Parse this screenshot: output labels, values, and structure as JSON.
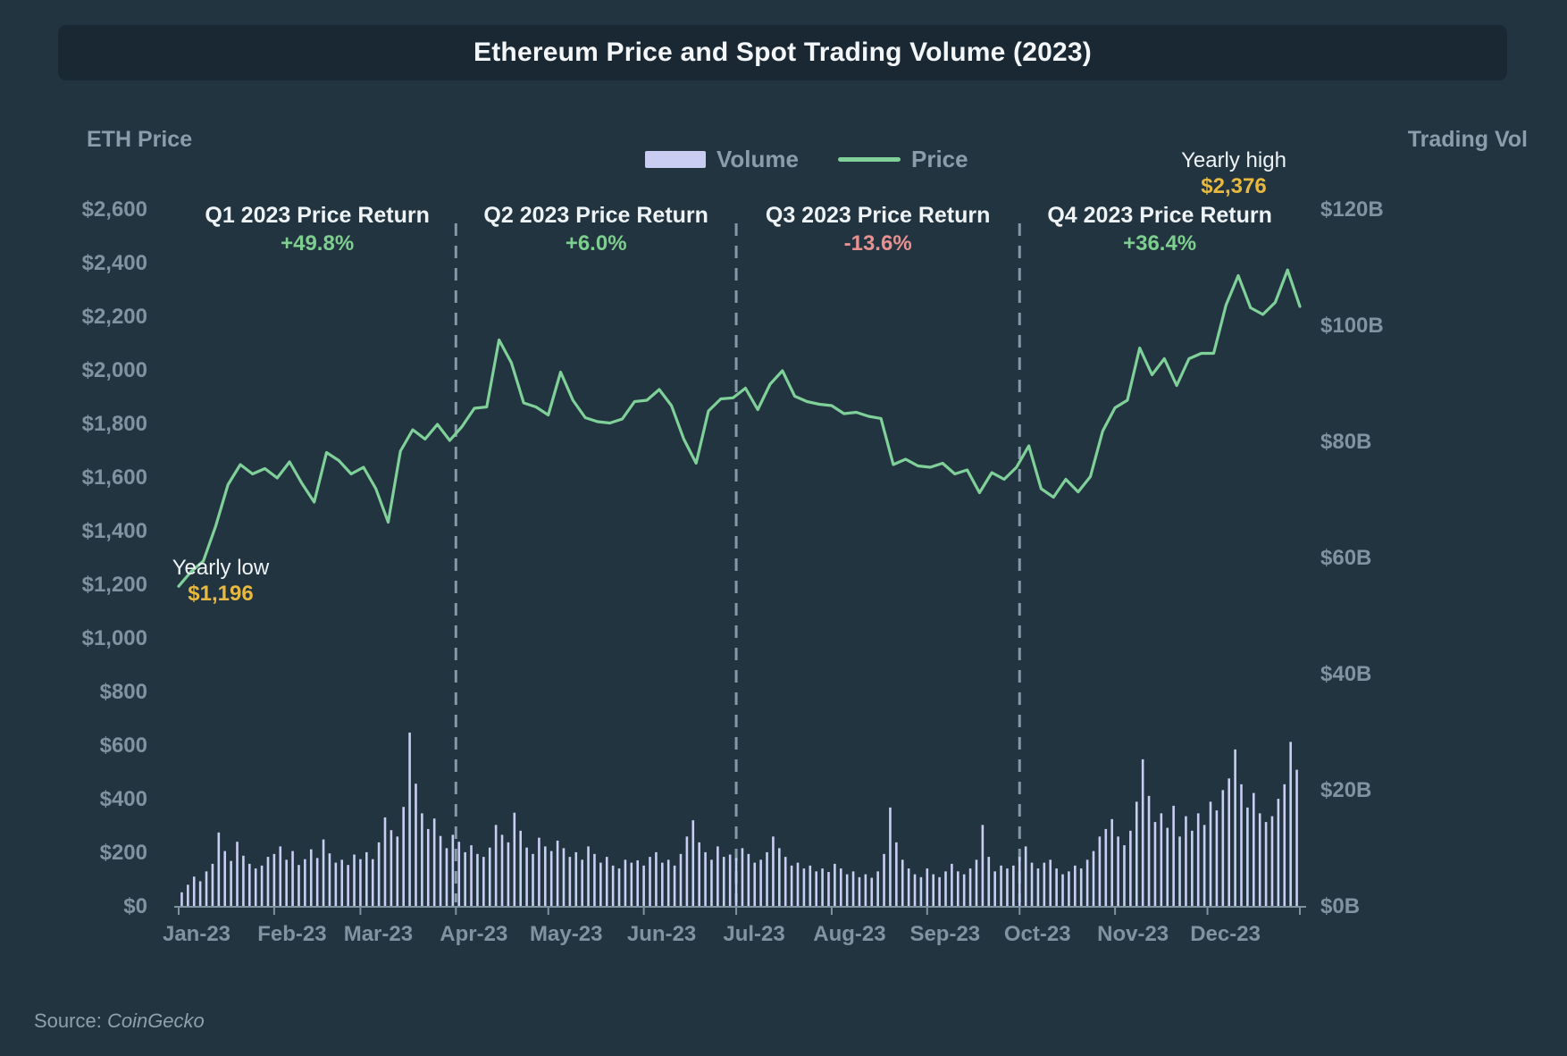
{
  "title": {
    "text": "Ethereum Price and Spot Trading Volume (2023)"
  },
  "axes": {
    "left_title": "ETH Price",
    "right_title": "Trading Vol",
    "left_ticks": [
      "$0",
      "$200",
      "$400",
      "$600",
      "$800",
      "$1,000",
      "$1,200",
      "$1,400",
      "$1,600",
      "$1,800",
      "$2,000",
      "$2,200",
      "$2,400",
      "$2,600"
    ],
    "right_ticks": [
      "$0B",
      "$20B",
      "$40B",
      "$60B",
      "$80B",
      "$100B",
      "$120B"
    ],
    "month_labels": [
      "Jan-23",
      "Feb-23",
      "Mar-23",
      "Apr-23",
      "May-23",
      "Jun-23",
      "Jul-23",
      "Aug-23",
      "Sep-23",
      "Oct-23",
      "Nov-23",
      "Dec-23"
    ]
  },
  "legend": {
    "volume_label": "Volume",
    "price_label": "Price"
  },
  "quarters": [
    {
      "label": "Q1 2023 Price Return",
      "value": "+49.8%",
      "direction": "positive"
    },
    {
      "label": "Q2 2023 Price Return",
      "value": "+6.0%",
      "direction": "positive"
    },
    {
      "label": "Q3 2023 Price Return",
      "value": "-13.6%",
      "direction": "negative"
    },
    {
      "label": "Q4 2023 Price Return",
      "value": "+36.4%",
      "direction": "positive"
    }
  ],
  "annotations": {
    "yearly_low": {
      "label": "Yearly low",
      "value": "$1,196"
    },
    "yearly_high": {
      "label": "Yearly high",
      "value": "$2,376"
    }
  },
  "source": {
    "prefix": "Source:",
    "name": "CoinGecko"
  },
  "colors": {
    "background": "#223440",
    "panel": "#1a2833",
    "title_text": "#f4f7f9",
    "axis_text": "#8093a0",
    "legend_text": "#8a9dab",
    "price_line": "#7fd099",
    "volume_bar": "#c9cdf1",
    "divider": "#9db3c1",
    "positive": "#7ecf8f",
    "negative": "#e79191",
    "highlight": "#e8b93e",
    "annotation_text": "#eef3f6",
    "axis_line": "#7e92a0"
  },
  "chart_data": {
    "type": "line+bar",
    "title": "Ethereum Price and Spot Trading Volume (2023)",
    "x_axis": {
      "start": "2023-01-01",
      "end": "2023-12-31",
      "month_tick_days": [
        0,
        31,
        59,
        90,
        120,
        151,
        181,
        212,
        243,
        273,
        304,
        334
      ]
    },
    "left_axis": {
      "label": "ETH Price (USD)",
      "min": 0,
      "max": 2600,
      "tick_step": 200
    },
    "right_axis": {
      "label": "Trading Vol (USD billions)",
      "min": 0,
      "max": 120,
      "tick_step": 20
    },
    "quarter_boundaries_days": [
      90,
      181,
      273
    ],
    "quarter_returns_pct": [
      49.8,
      6.0,
      -13.6,
      36.4
    ],
    "yearly_low_usd": 1196,
    "yearly_high_usd": 2376,
    "price": {
      "series": "ETH price, USD",
      "axis": "left",
      "start_day": 0,
      "step_days": 4,
      "values": [
        1196,
        1250,
        1290,
        1420,
        1575,
        1650,
        1615,
        1635,
        1600,
        1660,
        1580,
        1510,
        1695,
        1665,
        1615,
        1640,
        1560,
        1435,
        1700,
        1780,
        1745,
        1800,
        1740,
        1792,
        1860,
        1865,
        2115,
        2030,
        1880,
        1865,
        1835,
        1995,
        1890,
        1825,
        1810,
        1805,
        1820,
        1885,
        1890,
        1930,
        1870,
        1745,
        1655,
        1850,
        1895,
        1899,
        1935,
        1855,
        1950,
        2000,
        1905,
        1885,
        1875,
        1870,
        1840,
        1845,
        1830,
        1822,
        1650,
        1670,
        1645,
        1640,
        1655,
        1615,
        1630,
        1545,
        1620,
        1595,
        1640,
        1720,
        1560,
        1528,
        1595,
        1548,
        1605,
        1775,
        1862,
        1890,
        2085,
        1985,
        2045,
        1945,
        2045,
        2065,
        2065,
        2245,
        2355,
        2235,
        2210,
        2255,
        2376,
        2240
      ]
    },
    "volume": {
      "series": "Spot trading volume, USD billions",
      "axis": "right",
      "start_day": 1,
      "step_days": 2,
      "values": [
        2.5,
        3.8,
        5.2,
        4.4,
        6.1,
        7.4,
        12.8,
        9.6,
        7.9,
        11.2,
        8.8,
        7.4,
        6.6,
        7.1,
        8.6,
        9.1,
        10.4,
        8.1,
        9.6,
        7.2,
        8.2,
        9.9,
        8.4,
        11.6,
        9.2,
        7.6,
        8.1,
        7.2,
        9.0,
        8.2,
        9.4,
        8.2,
        11.1,
        15.4,
        13.2,
        12.1,
        17.2,
        30.0,
        21.2,
        16.1,
        13.4,
        15.2,
        12.2,
        10.1,
        12.4,
        11.2,
        9.4,
        10.6,
        9.1,
        8.6,
        10.2,
        14.1,
        12.4,
        11.1,
        16.2,
        13.1,
        10.2,
        9.1,
        11.9,
        10.4,
        9.6,
        11.4,
        10.1,
        8.6,
        9.4,
        8.1,
        10.4,
        9.1,
        7.6,
        8.6,
        7.1,
        6.6,
        8.1,
        7.6,
        8.0,
        7.1,
        8.6,
        9.4,
        7.6,
        8.1,
        7.1,
        9.1,
        12.1,
        14.9,
        11.1,
        9.4,
        8.1,
        10.4,
        8.6,
        9.0,
        8.4,
        10.1,
        9.1,
        7.6,
        8.1,
        9.4,
        12.1,
        10.1,
        8.6,
        7.1,
        7.6,
        6.6,
        7.1,
        6.1,
        6.6,
        6.0,
        7.4,
        6.6,
        5.6,
        6.1,
        5.1,
        5.6,
        5.0,
        6.1,
        9.1,
        17.1,
        11.1,
        8.1,
        6.6,
        5.6,
        5.1,
        6.6,
        5.6,
        5.1,
        6.1,
        7.4,
        6.1,
        5.6,
        6.6,
        8.1,
        14.1,
        8.6,
        6.1,
        7.1,
        6.6,
        7.1,
        8.6,
        10.4,
        7.6,
        6.6,
        7.6,
        8.1,
        6.6,
        5.6,
        6.1,
        7.1,
        6.6,
        8.1,
        9.6,
        12.1,
        13.4,
        15.1,
        12.1,
        10.6,
        13.1,
        18.1,
        25.4,
        19.1,
        14.6,
        16.1,
        13.6,
        17.4,
        12.1,
        15.6,
        13.1,
        16.1,
        14.1,
        18.1,
        16.6,
        20.1,
        22.1,
        27.1,
        21.1,
        17.1,
        19.6,
        16.1,
        14.6,
        15.6,
        18.6,
        21.1,
        28.4,
        23.6
      ]
    }
  }
}
